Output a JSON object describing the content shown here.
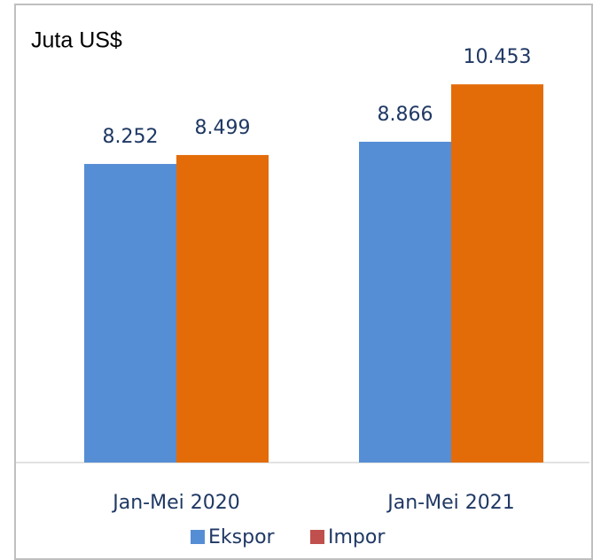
{
  "chart_data": {
    "type": "bar",
    "title": "Juta US$",
    "categories": [
      "Jan-Mei 2020",
      "Jan-Mei 2021"
    ],
    "series": [
      {
        "name": "Ekspor",
        "color": "#558ed5",
        "values": [
          8252,
          8866
        ],
        "value_labels": [
          "8.252",
          "8.866"
        ]
      },
      {
        "name": "Impor",
        "color": "#e36c09",
        "legend_color": "#c0504d",
        "values": [
          8499,
          10453
        ],
        "value_labels": [
          "8.499",
          "10.453"
        ]
      }
    ],
    "ylim": [
      0,
      12000
    ],
    "legend": "bottom"
  }
}
